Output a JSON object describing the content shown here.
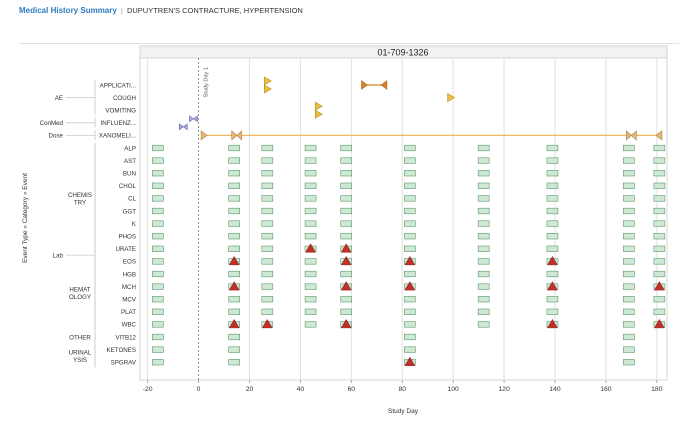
{
  "header": {
    "title": "Medical History Summary",
    "separator": "|",
    "conditions": "DUPUYTREN'S CONTRACTURE, HYPERTENSION"
  },
  "colors": {
    "lab_box_fill": "#cfe8d5",
    "lab_box_stroke": "#5a9a6a",
    "high_triangle": "#c0302a",
    "dose_line": "#f0b860",
    "dose_marker": "#e6b878",
    "ae_marker": "#e8c040",
    "conmed_marker": "#a7a9d8",
    "ae_dark": "#d8802a"
  },
  "chart_data": {
    "type": "timeline",
    "title": "01-709-1326",
    "xlabel": "Study Day",
    "ylabel": "Event Type » Category » Event",
    "xlim": [
      -23,
      184
    ],
    "x_ticks": [
      -20,
      0,
      20,
      40,
      60,
      80,
      100,
      120,
      140,
      160,
      180
    ],
    "reference_line": {
      "x": 0,
      "label": "Study Day 1"
    },
    "rows": [
      {
        "type": "AE",
        "category": "",
        "event": "APPLICATI..."
      },
      {
        "type": "AE",
        "category": "",
        "event": "COUGH"
      },
      {
        "type": "AE",
        "category": "",
        "event": "VOMITING"
      },
      {
        "type": "ConMed",
        "category": "",
        "event": "INFLUENZ..."
      },
      {
        "type": "Dose",
        "category": "",
        "event": "XANOMELI..."
      },
      {
        "type": "Lab",
        "category": "CHEMIS TRY",
        "event": "ALP"
      },
      {
        "type": "Lab",
        "category": "CHEMIS TRY",
        "event": "AST"
      },
      {
        "type": "Lab",
        "category": "CHEMIS TRY",
        "event": "BUN"
      },
      {
        "type": "Lab",
        "category": "CHEMIS TRY",
        "event": "CHOL"
      },
      {
        "type": "Lab",
        "category": "CHEMIS TRY",
        "event": "CL"
      },
      {
        "type": "Lab",
        "category": "CHEMIS TRY",
        "event": "GGT"
      },
      {
        "type": "Lab",
        "category": "CHEMIS TRY",
        "event": "K"
      },
      {
        "type": "Lab",
        "category": "CHEMIS TRY",
        "event": "PHOS"
      },
      {
        "type": "Lab",
        "category": "CHEMIS TRY",
        "event": "URATE"
      },
      {
        "type": "Lab",
        "category": "HEMAT OLOGY",
        "event": "EOS"
      },
      {
        "type": "Lab",
        "category": "HEMAT OLOGY",
        "event": "HGB"
      },
      {
        "type": "Lab",
        "category": "HEMAT OLOGY",
        "event": "MCH"
      },
      {
        "type": "Lab",
        "category": "HEMAT OLOGY",
        "event": "MCV"
      },
      {
        "type": "Lab",
        "category": "HEMAT OLOGY",
        "event": "PLAT"
      },
      {
        "type": "Lab",
        "category": "HEMAT OLOGY",
        "event": "WBC"
      },
      {
        "type": "Lab",
        "category": "OTHER",
        "event": "VITB12"
      },
      {
        "type": "Lab",
        "category": "URINAL YSIS",
        "event": "KETONES"
      },
      {
        "type": "Lab",
        "category": "URINAL YSIS",
        "event": "SPGRAV"
      }
    ],
    "type_groups": [
      {
        "label": "AE",
        "rows": [
          0,
          2
        ]
      },
      {
        "label": "ConMed",
        "rows": [
          3,
          3
        ]
      },
      {
        "label": "Dose",
        "rows": [
          4,
          4
        ]
      },
      {
        "label": "Lab",
        "rows": [
          5,
          22
        ]
      }
    ],
    "category_groups": [
      {
        "label": "CHEMIS TRY",
        "rows": [
          5,
          13
        ]
      },
      {
        "label": "HEMAT OLOGY",
        "rows": [
          14,
          19
        ]
      },
      {
        "label": "OTHER",
        "rows": [
          20,
          20
        ]
      },
      {
        "label": "URINAL YSIS",
        "rows": [
          21,
          22
        ]
      }
    ],
    "lab_visits": [
      {
        "day": -16,
        "rows": [
          5,
          6,
          7,
          8,
          9,
          10,
          11,
          12,
          13,
          14,
          15,
          16,
          17,
          18,
          19,
          20,
          21,
          22
        ]
      },
      {
        "day": 14,
        "rows": [
          5,
          6,
          7,
          8,
          9,
          10,
          11,
          12,
          13,
          14,
          15,
          16,
          17,
          18,
          19,
          20,
          21,
          22
        ]
      },
      {
        "day": 27,
        "rows": [
          5,
          6,
          7,
          8,
          9,
          10,
          11,
          12,
          13,
          14,
          15,
          16,
          17,
          18,
          19
        ]
      },
      {
        "day": 44,
        "rows": [
          5,
          6,
          7,
          8,
          9,
          10,
          11,
          12,
          13,
          14,
          15,
          16,
          17,
          18,
          19
        ]
      },
      {
        "day": 58,
        "rows": [
          5,
          6,
          7,
          8,
          9,
          10,
          11,
          12,
          13,
          14,
          15,
          16,
          17,
          18,
          19
        ]
      },
      {
        "day": 83,
        "rows": [
          5,
          6,
          7,
          8,
          9,
          10,
          11,
          12,
          13,
          14,
          15,
          16,
          17,
          18,
          19,
          20,
          21,
          22
        ]
      },
      {
        "day": 112,
        "rows": [
          5,
          6,
          7,
          8,
          9,
          10,
          11,
          12,
          13,
          14,
          15,
          16,
          17,
          18,
          19
        ]
      },
      {
        "day": 139,
        "rows": [
          5,
          6,
          7,
          8,
          9,
          10,
          11,
          12,
          13,
          14,
          15,
          16,
          17,
          18,
          19
        ]
      },
      {
        "day": 169,
        "rows": [
          5,
          6,
          7,
          8,
          9,
          10,
          11,
          12,
          13,
          14,
          15,
          16,
          17,
          18,
          19,
          20,
          21,
          22
        ]
      },
      {
        "day": 181,
        "rows": [
          5,
          6,
          7,
          8,
          9,
          10,
          11,
          12,
          13,
          14,
          15,
          16,
          17,
          18,
          19
        ]
      }
    ],
    "lab_high_flags": [
      {
        "row": 13,
        "day": 44
      },
      {
        "row": 13,
        "day": 58
      },
      {
        "row": 14,
        "day": 14
      },
      {
        "row": 14,
        "day": 58
      },
      {
        "row": 14,
        "day": 83
      },
      {
        "row": 14,
        "day": 139
      },
      {
        "row": 16,
        "day": 14
      },
      {
        "row": 16,
        "day": 58
      },
      {
        "row": 16,
        "day": 83
      },
      {
        "row": 16,
        "day": 139
      },
      {
        "row": 16,
        "day": 181
      },
      {
        "row": 19,
        "day": 14
      },
      {
        "row": 19,
        "day": 27
      },
      {
        "row": 19,
        "day": 58
      },
      {
        "row": 19,
        "day": 139
      },
      {
        "row": 19,
        "day": 181
      },
      {
        "row": 22,
        "day": 83
      }
    ],
    "ae_events": [
      {
        "row": 0,
        "start": 64,
        "end": 74
      },
      {
        "row": 0,
        "day": 27,
        "marker": "single",
        "offset": -4
      },
      {
        "row": 0,
        "day": 27,
        "marker": "single",
        "offset": 4
      },
      {
        "row": 1,
        "day": 99,
        "marker": "single"
      },
      {
        "row": 2,
        "day": 47,
        "marker": "single",
        "offset": -4
      },
      {
        "row": 2,
        "day": 47,
        "marker": "single",
        "offset": 4
      }
    ],
    "conmed_events": [
      {
        "row": 3,
        "day": -6,
        "offset": 4
      },
      {
        "row": 3,
        "day": -2,
        "offset": -4
      }
    ],
    "dose": {
      "row": 4,
      "start": 1,
      "end": 182,
      "markers": [
        1,
        15,
        170,
        182
      ]
    }
  }
}
